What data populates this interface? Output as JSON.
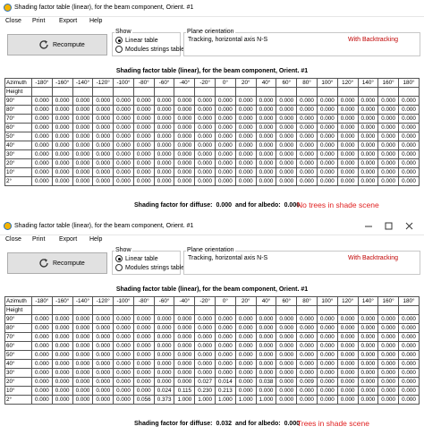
{
  "windows": [
    {
      "title": "Shading factor table (linear), for the beam component, Orient. #1",
      "menu": [
        "Close",
        "Print",
        "Export",
        "Help"
      ],
      "recompute": "Recompute",
      "show": {
        "label": "Show",
        "options": [
          "Linear table",
          "Modules strings table"
        ],
        "selected": 0
      },
      "plane": {
        "label": "Plane orientation",
        "text": "Tracking, horizontal axis N-S",
        "tracking": "With Backtracking"
      },
      "table": {
        "title": "Shading factor table (linear), for the beam component, Orient. #1",
        "corner_top": "Azimuth",
        "corner_bottom": "Height",
        "columns": [
          "-180°",
          "-160°",
          "-140°",
          "-120°",
          "-100°",
          "-80°",
          "-60°",
          "-40°",
          "-20°",
          "0°",
          "20°",
          "40°",
          "60°",
          "80°",
          "100°",
          "120°",
          "140°",
          "160°",
          "180°"
        ],
        "rows": [
          {
            "label": "90°",
            "values": [
              "0.000",
              "0.000",
              "0.000",
              "0.000",
              "0.000",
              "0.000",
              "0.000",
              "0.000",
              "0.000",
              "0.000",
              "0.000",
              "0.000",
              "0.000",
              "0.000",
              "0.000",
              "0.000",
              "0.000",
              "0.000",
              "0.000"
            ]
          },
          {
            "label": "80°",
            "values": [
              "0.000",
              "0.000",
              "0.000",
              "0.000",
              "0.000",
              "0.000",
              "0.000",
              "0.000",
              "0.000",
              "0.000",
              "0.000",
              "0.000",
              "0.000",
              "0.000",
              "0.000",
              "0.000",
              "0.000",
              "0.000",
              "0.000"
            ]
          },
          {
            "label": "70°",
            "values": [
              "0.000",
              "0.000",
              "0.000",
              "0.000",
              "0.000",
              "0.000",
              "0.000",
              "0.000",
              "0.000",
              "0.000",
              "0.000",
              "0.000",
              "0.000",
              "0.000",
              "0.000",
              "0.000",
              "0.000",
              "0.000",
              "0.000"
            ]
          },
          {
            "label": "60°",
            "values": [
              "0.000",
              "0.000",
              "0.000",
              "0.000",
              "0.000",
              "0.000",
              "0.000",
              "0.000",
              "0.000",
              "0.000",
              "0.000",
              "0.000",
              "0.000",
              "0.000",
              "0.000",
              "0.000",
              "0.000",
              "0.000",
              "0.000"
            ]
          },
          {
            "label": "50°",
            "values": [
              "0.000",
              "0.000",
              "0.000",
              "0.000",
              "0.000",
              "0.000",
              "0.000",
              "0.000",
              "0.000",
              "0.000",
              "0.000",
              "0.000",
              "0.000",
              "0.000",
              "0.000",
              "0.000",
              "0.000",
              "0.000",
              "0.000"
            ]
          },
          {
            "label": "40°",
            "values": [
              "0.000",
              "0.000",
              "0.000",
              "0.000",
              "0.000",
              "0.000",
              "0.000",
              "0.000",
              "0.000",
              "0.000",
              "0.000",
              "0.000",
              "0.000",
              "0.000",
              "0.000",
              "0.000",
              "0.000",
              "0.000",
              "0.000"
            ]
          },
          {
            "label": "30°",
            "values": [
              "0.000",
              "0.000",
              "0.000",
              "0.000",
              "0.000",
              "0.000",
              "0.000",
              "0.000",
              "0.000",
              "0.000",
              "0.000",
              "0.000",
              "0.000",
              "0.000",
              "0.000",
              "0.000",
              "0.000",
              "0.000",
              "0.000"
            ]
          },
          {
            "label": "20°",
            "values": [
              "0.000",
              "0.000",
              "0.000",
              "0.000",
              "0.000",
              "0.000",
              "0.000",
              "0.000",
              "0.000",
              "0.000",
              "0.000",
              "0.000",
              "0.000",
              "0.000",
              "0.000",
              "0.000",
              "0.000",
              "0.000",
              "0.000"
            ]
          },
          {
            "label": "10°",
            "values": [
              "0.000",
              "0.000",
              "0.000",
              "0.000",
              "0.000",
              "0.000",
              "0.000",
              "0.000",
              "0.000",
              "0.000",
              "0.000",
              "0.000",
              "0.000",
              "0.000",
              "0.000",
              "0.000",
              "0.000",
              "0.000",
              "0.000"
            ]
          },
          {
            "label": "2°",
            "values": [
              "0.000",
              "0.000",
              "0.000",
              "0.000",
              "0.000",
              "0.000",
              "0.000",
              "0.000",
              "0.000",
              "0.000",
              "0.000",
              "0.000",
              "0.000",
              "0.000",
              "0.000",
              "0.000",
              "0.000",
              "0.000",
              "0.000"
            ]
          }
        ]
      },
      "footer": {
        "diffuse_label": "Shading factor for diffuse:",
        "diffuse": "0.000",
        "albedo_label": "and for albedo:",
        "albedo": "0.000"
      },
      "note": "No trees in shade scene"
    },
    {
      "title": "Shading factor table (linear), for the beam component, Orient. #1",
      "menu": [
        "Close",
        "Print",
        "Export",
        "Help"
      ],
      "recompute": "Recompute",
      "show": {
        "label": "Show",
        "options": [
          "Linear table",
          "Modules strings table"
        ],
        "selected": 0
      },
      "plane": {
        "label": "Plane orientation",
        "text": "Tracking, horizontal axis N-S",
        "tracking": "With Backtracking"
      },
      "table": {
        "title": "Shading factor table (linear), for the beam component, Orient. #1",
        "corner_top": "Azimuth",
        "corner_bottom": "Height",
        "columns": [
          "-180°",
          "-160°",
          "-140°",
          "-120°",
          "-100°",
          "-80°",
          "-60°",
          "-40°",
          "-20°",
          "0°",
          "20°",
          "40°",
          "60°",
          "80°",
          "100°",
          "120°",
          "140°",
          "160°",
          "180°"
        ],
        "rows": [
          {
            "label": "90°",
            "values": [
              "0.000",
              "0.000",
              "0.000",
              "0.000",
              "0.000",
              "0.000",
              "0.000",
              "0.000",
              "0.000",
              "0.000",
              "0.000",
              "0.000",
              "0.000",
              "0.000",
              "0.000",
              "0.000",
              "0.000",
              "0.000",
              "0.000"
            ]
          },
          {
            "label": "80°",
            "values": [
              "0.000",
              "0.000",
              "0.000",
              "0.000",
              "0.000",
              "0.000",
              "0.000",
              "0.000",
              "0.000",
              "0.000",
              "0.000",
              "0.000",
              "0.000",
              "0.000",
              "0.000",
              "0.000",
              "0.000",
              "0.000",
              "0.000"
            ]
          },
          {
            "label": "70°",
            "values": [
              "0.000",
              "0.000",
              "0.000",
              "0.000",
              "0.000",
              "0.000",
              "0.000",
              "0.000",
              "0.000",
              "0.000",
              "0.000",
              "0.000",
              "0.000",
              "0.000",
              "0.000",
              "0.000",
              "0.000",
              "0.000",
              "0.000"
            ]
          },
          {
            "label": "60°",
            "values": [
              "0.000",
              "0.000",
              "0.000",
              "0.000",
              "0.000",
              "0.000",
              "0.000",
              "0.000",
              "0.000",
              "0.000",
              "0.000",
              "0.000",
              "0.000",
              "0.000",
              "0.000",
              "0.000",
              "0.000",
              "0.000",
              "0.000"
            ]
          },
          {
            "label": "50°",
            "values": [
              "0.000",
              "0.000",
              "0.000",
              "0.000",
              "0.000",
              "0.000",
              "0.000",
              "0.000",
              "0.000",
              "0.000",
              "0.000",
              "0.000",
              "0.000",
              "0.000",
              "0.000",
              "0.000",
              "0.000",
              "0.000",
              "0.000"
            ]
          },
          {
            "label": "40°",
            "values": [
              "0.000",
              "0.000",
              "0.000",
              "0.000",
              "0.000",
              "0.000",
              "0.000",
              "0.000",
              "0.000",
              "0.000",
              "0.000",
              "0.000",
              "0.000",
              "0.000",
              "0.000",
              "0.000",
              "0.000",
              "0.000",
              "0.000"
            ]
          },
          {
            "label": "30°",
            "values": [
              "0.000",
              "0.000",
              "0.000",
              "0.000",
              "0.000",
              "0.000",
              "0.000",
              "0.000",
              "0.000",
              "0.000",
              "0.000",
              "0.000",
              "0.000",
              "0.000",
              "0.000",
              "0.000",
              "0.000",
              "0.000",
              "0.000"
            ]
          },
          {
            "label": "20°",
            "values": [
              "0.000",
              "0.000",
              "0.000",
              "0.000",
              "0.000",
              "0.000",
              "0.000",
              "0.000",
              "0.027",
              "0.014",
              "0.000",
              "0.038",
              "0.000",
              "0.009",
              "0.000",
              "0.000",
              "0.000",
              "0.000",
              "0.000"
            ]
          },
          {
            "label": "10°",
            "values": [
              "0.000",
              "0.000",
              "0.000",
              "0.000",
              "0.000",
              "0.000",
              "0.024",
              "0.115",
              "0.230",
              "0.213",
              "0.000",
              "0.000",
              "0.000",
              "0.000",
              "0.000",
              "0.000",
              "0.000",
              "0.000",
              "0.000"
            ]
          },
          {
            "label": "2°",
            "values": [
              "0.000",
              "0.000",
              "0.000",
              "0.000",
              "0.000",
              "0.056",
              "0.373",
              "1.000",
              "1.000",
              "1.000",
              "1.000",
              "1.000",
              "0.000",
              "0.000",
              "0.000",
              "0.000",
              "0.000",
              "0.000",
              "0.000"
            ]
          }
        ]
      },
      "footer": {
        "diffuse_label": "Shading factor for diffuse:",
        "diffuse": "0.032",
        "albedo_label": "and for albedo:",
        "albedo": "0.000"
      },
      "note": "Trees in shade scene"
    }
  ]
}
